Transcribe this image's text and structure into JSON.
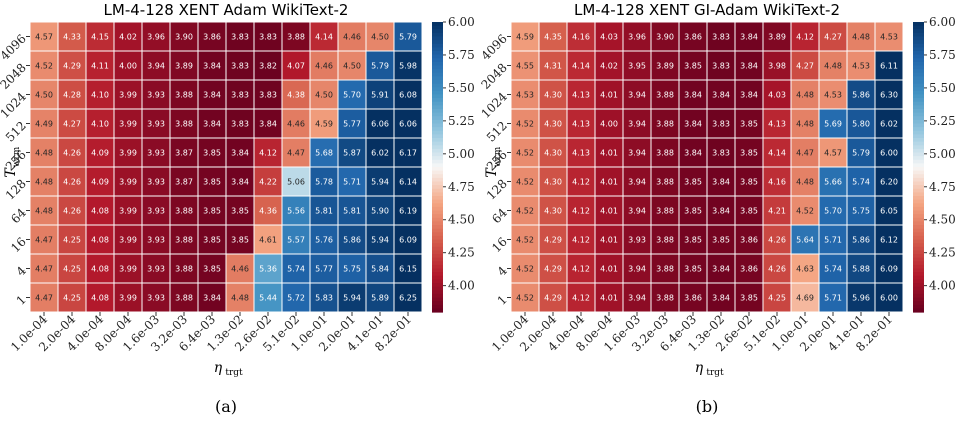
{
  "chart_data": [
    {
      "type": "heatmap",
      "title": "LM-4-128 XENT Adam WikiText-2",
      "caption": "(a)",
      "xlabel_main": "η",
      "xlabel_sub": "trgt",
      "ylabel_main": "T",
      "ylabel_sub": "wrm",
      "x_ticks": [
        "1.0e-04",
        "2.0e-04",
        "4.0e-04",
        "8.0e-04",
        "1.6e-03",
        "3.2e-03",
        "6.4e-03",
        "1.3e-02",
        "2.6e-02",
        "5.1e-02",
        "1.0e-01",
        "2.0e-01",
        "4.1e-01",
        "8.2e-01"
      ],
      "y_ticks": [
        "4096",
        "2048",
        "1024",
        "512",
        "256",
        "128",
        "64",
        "16",
        "4",
        "1"
      ],
      "colorbar": {
        "min": 3.8,
        "max": 6.0,
        "ticks": [
          "4.00",
          "4.25",
          "4.50",
          "4.75",
          "5.00",
          "5.25",
          "5.50",
          "5.75",
          "6.00"
        ]
      },
      "values": [
        [
          4.57,
          4.33,
          4.15,
          4.02,
          3.96,
          3.9,
          3.86,
          3.83,
          3.83,
          3.88,
          4.14,
          4.46,
          4.5,
          5.79
        ],
        [
          4.52,
          4.29,
          4.11,
          4.0,
          3.94,
          3.89,
          3.84,
          3.83,
          3.82,
          4.07,
          4.46,
          4.5,
          5.79,
          5.98
        ],
        [
          4.5,
          4.28,
          4.1,
          3.99,
          3.93,
          3.88,
          3.84,
          3.83,
          3.83,
          4.38,
          4.5,
          5.7,
          5.91,
          6.08
        ],
        [
          4.49,
          4.27,
          4.1,
          3.99,
          3.93,
          3.88,
          3.84,
          3.83,
          3.84,
          4.46,
          4.59,
          5.77,
          6.06,
          6.06
        ],
        [
          4.48,
          4.26,
          4.09,
          3.99,
          3.93,
          3.87,
          3.85,
          3.84,
          4.12,
          4.47,
          5.68,
          5.87,
          6.02,
          6.17
        ],
        [
          4.48,
          4.26,
          4.09,
          3.99,
          3.93,
          3.87,
          3.85,
          3.84,
          4.22,
          5.06,
          5.78,
          5.71,
          5.94,
          6.14
        ],
        [
          4.48,
          4.26,
          4.08,
          3.99,
          3.93,
          3.88,
          3.85,
          3.85,
          4.36,
          5.56,
          5.81,
          5.81,
          5.9,
          6.19
        ],
        [
          4.47,
          4.25,
          4.08,
          3.99,
          3.93,
          3.88,
          3.85,
          3.85,
          4.61,
          5.57,
          5.76,
          5.86,
          5.94,
          6.09
        ],
        [
          4.47,
          4.25,
          4.08,
          3.99,
          3.93,
          3.88,
          3.85,
          4.46,
          5.36,
          5.74,
          5.77,
          5.75,
          5.84,
          6.15
        ],
        [
          4.47,
          4.25,
          4.08,
          3.99,
          3.93,
          3.88,
          3.84,
          4.48,
          5.44,
          5.72,
          5.83,
          5.94,
          5.89,
          6.25
        ]
      ]
    },
    {
      "type": "heatmap",
      "title": "LM-4-128 XENT GI-Adam WikiText-2",
      "caption": "(b)",
      "xlabel_main": "η",
      "xlabel_sub": "trgt",
      "ylabel_main": "T",
      "ylabel_sub": "wrm",
      "x_ticks": [
        "1.0e-04",
        "2.0e-04",
        "4.0e-04",
        "8.0e-04",
        "1.6e-03",
        "3.2e-03",
        "6.4e-03",
        "1.3e-02",
        "2.6e-02",
        "5.1e-02",
        "1.0e-01",
        "2.0e-01",
        "4.1e-01",
        "8.2e-01"
      ],
      "y_ticks": [
        "4096",
        "2048",
        "1024",
        "512",
        "256",
        "128",
        "64",
        "16",
        "4",
        "1"
      ],
      "colorbar": {
        "min": 3.8,
        "max": 6.0,
        "ticks": [
          "4.00",
          "4.25",
          "4.50",
          "4.75",
          "5.00",
          "5.25",
          "5.50",
          "5.75",
          "6.00"
        ]
      },
      "values": [
        [
          4.59,
          4.35,
          4.16,
          4.03,
          3.96,
          3.9,
          3.86,
          3.83,
          3.84,
          3.89,
          4.12,
          4.27,
          4.48,
          4.53
        ],
        [
          4.55,
          4.31,
          4.14,
          4.02,
          3.95,
          3.89,
          3.85,
          3.83,
          3.84,
          3.98,
          4.27,
          4.48,
          4.53,
          6.11
        ],
        [
          4.53,
          4.3,
          4.13,
          4.01,
          3.94,
          3.88,
          3.84,
          3.84,
          3.84,
          4.03,
          4.48,
          4.53,
          5.86,
          6.3
        ],
        [
          4.52,
          4.3,
          4.13,
          4.0,
          3.94,
          3.88,
          3.84,
          3.83,
          3.85,
          4.13,
          4.48,
          5.69,
          5.8,
          6.02
        ],
        [
          4.52,
          4.3,
          4.13,
          4.01,
          3.94,
          3.88,
          3.84,
          3.83,
          3.85,
          4.14,
          4.47,
          4.57,
          5.79,
          6.0
        ],
        [
          4.52,
          4.3,
          4.12,
          4.01,
          3.94,
          3.88,
          3.85,
          3.84,
          3.85,
          4.16,
          4.48,
          5.66,
          5.74,
          6.2
        ],
        [
          4.52,
          4.3,
          4.12,
          4.01,
          3.94,
          3.88,
          3.85,
          3.84,
          3.85,
          4.21,
          4.52,
          5.7,
          5.75,
          6.05
        ],
        [
          4.52,
          4.29,
          4.12,
          4.01,
          3.93,
          3.88,
          3.85,
          3.85,
          3.86,
          4.26,
          5.64,
          5.71,
          5.86,
          6.12
        ],
        [
          4.52,
          4.29,
          4.12,
          4.01,
          3.94,
          3.88,
          3.85,
          3.84,
          3.86,
          4.26,
          4.63,
          5.74,
          5.88,
          6.09
        ],
        [
          4.52,
          4.29,
          4.12,
          4.01,
          3.94,
          3.88,
          3.86,
          3.84,
          3.85,
          4.25,
          4.69,
          5.71,
          5.96,
          6.0
        ]
      ]
    }
  ]
}
